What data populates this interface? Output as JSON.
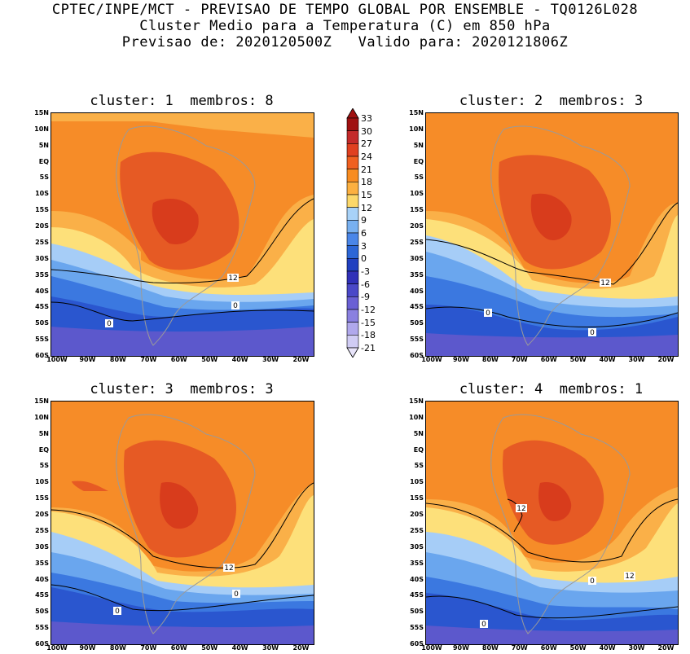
{
  "header": {
    "line1": "CPTEC/INPE/MCT - PREVISAO DE TEMPO GLOBAL POR ENSEMBLE - TQ0126L028",
    "line2": "Cluster Medio para a Temperatura (C) em 850 hPa",
    "line3": "Previsao de: 2020120500Z   Valido para: 2020121806Z"
  },
  "panels": [
    {
      "title": "cluster: 1  membros: 8",
      "contour_labels": [
        "12",
        "0",
        "0"
      ]
    },
    {
      "title": "cluster: 2  membros: 3",
      "contour_labels": [
        "12",
        "0",
        "0"
      ]
    },
    {
      "title": "cluster: 3  membros: 3",
      "contour_labels": [
        "12",
        "0",
        "0"
      ]
    },
    {
      "title": "cluster: 4  membros: 1",
      "contour_labels": [
        "12",
        "12",
        "0",
        "0"
      ]
    }
  ],
  "axes": {
    "y_ticks": [
      "15N",
      "10N",
      "5N",
      "EQ",
      "5S",
      "10S",
      "15S",
      "20S",
      "25S",
      "30S",
      "35S",
      "40S",
      "45S",
      "50S",
      "55S",
      "60S"
    ],
    "x_ticks": [
      "100W",
      "90W",
      "80W",
      "70W",
      "60W",
      "50W",
      "40W",
      "30W",
      "20W"
    ]
  },
  "colorbar": {
    "labels": [
      "33",
      "30",
      "27",
      "24",
      "21",
      "18",
      "15",
      "12",
      "9",
      "6",
      "3",
      "0",
      "-3",
      "-6",
      "-9",
      "-12",
      "-15",
      "-18",
      "-21"
    ],
    "colors": [
      "#a01010",
      "#c42a2a",
      "#e04020",
      "#f06020",
      "#f88c20",
      "#fcb040",
      "#fcd86a",
      "#a8d2f8",
      "#78b0f0",
      "#4a86e8",
      "#2c66d6",
      "#2040c0",
      "#3030b8",
      "#4a48c8",
      "#6a60d4",
      "#8a80e0",
      "#b0a8ec",
      "#d0ccf4"
    ]
  },
  "colors": {
    "warm_core": "#e65a24",
    "hot_core": "#d83c1c",
    "orange": "#f68c28",
    "light_orange": "#fab048",
    "yellow": "#fde07a",
    "light_blue": "#a6cdf7",
    "mid_blue": "#6aa6ee",
    "blue": "#3b78e0",
    "deep_blue": "#2a56cf",
    "violet": "#5c58cc",
    "land_outline": "#9a9a9a"
  }
}
